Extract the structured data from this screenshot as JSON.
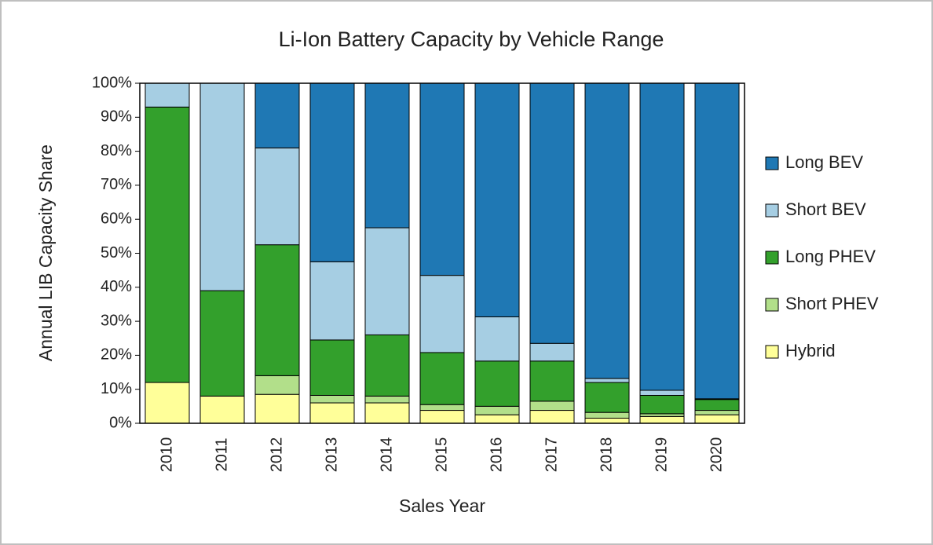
{
  "chart_data": {
    "type": "stacked_bar",
    "title": "Li-Ion Battery Capacity by Vehicle Range",
    "x_label": "Sales Year",
    "y_label": "Annual LIB Capacity Share",
    "categories": [
      "2010",
      "2011",
      "2012",
      "2013",
      "2014",
      "2015",
      "2016",
      "2017",
      "2018",
      "2019",
      "2020"
    ],
    "series": [
      {
        "name": "Hybrid",
        "color": "#ffff99",
        "values": [
          12,
          8,
          8.5,
          6,
          6,
          3.8,
          2.5,
          3.8,
          1.5,
          2,
          2.5
        ]
      },
      {
        "name": "Short PHEV",
        "color": "#b2df8a",
        "values": [
          0,
          0,
          5.5,
          2.2,
          2,
          1.7,
          2.5,
          2.7,
          1.7,
          0.8,
          1.3
        ]
      },
      {
        "name": "Long PHEV",
        "color": "#33a02c",
        "values": [
          81,
          31,
          38.5,
          16.3,
          18,
          15.3,
          13.3,
          11.8,
          8.8,
          5.4,
          3.2
        ]
      },
      {
        "name": "Short BEV",
        "color": "#a6cee3",
        "values": [
          7,
          61,
          28.5,
          23,
          31.5,
          22.7,
          13,
          5.2,
          1.2,
          1.5,
          0.2
        ]
      },
      {
        "name": "Long BEV",
        "color": "#1f78b4",
        "values": [
          0,
          0,
          19,
          52.5,
          42.5,
          56.5,
          68.7,
          76.5,
          86.8,
          90.3,
          92.8
        ]
      }
    ],
    "ylim": [
      0,
      100
    ],
    "yticks": [
      {
        "value": 0,
        "label": "0%"
      },
      {
        "value": 10,
        "label": "10%"
      },
      {
        "value": 20,
        "label": "20%"
      },
      {
        "value": 30,
        "label": "30%"
      },
      {
        "value": 40,
        "label": "40%"
      },
      {
        "value": 50,
        "label": "50%"
      },
      {
        "value": 60,
        "label": "60%"
      },
      {
        "value": 70,
        "label": "70%"
      },
      {
        "value": 80,
        "label": "80%"
      },
      {
        "value": 90,
        "label": "90%"
      },
      {
        "value": 100,
        "label": "100%"
      }
    ],
    "legend": "right"
  }
}
